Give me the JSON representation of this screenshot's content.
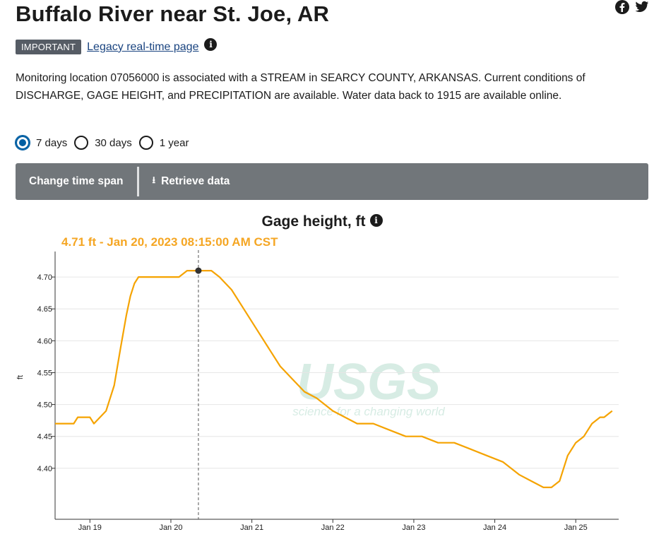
{
  "page": {
    "title": "Buffalo River near St. Joe, AR",
    "badge": "IMPORTANT",
    "legacy_link": "Legacy real-time page",
    "description": "Monitoring location 07056000 is associated with a STREAM in SEARCY COUNTY, ARKANSAS. Current conditions of DISCHARGE, GAGE HEIGHT, and PRECIPITATION are available. Water data back to 1915 are available online."
  },
  "social": {
    "facebook": "facebook-icon",
    "twitter": "twitter-icon"
  },
  "timespan": {
    "options": [
      "7 days",
      "30 days",
      "1 year"
    ],
    "selected": "7 days"
  },
  "toolbar": {
    "change_label": "Change time span",
    "retrieve_label": "Retrieve data"
  },
  "watermark": {
    "logo": "USGS",
    "tagline": "science for a changing world"
  },
  "chart_data": {
    "type": "line",
    "title": "Gage height, ft",
    "tooltip": "4.71 ft - Jan 20, 2023 08:15:00 AM CST",
    "ylabel": "ft",
    "xlabel": "",
    "ylim": [
      4.32,
      4.74
    ],
    "xlim": [
      18.57,
      25.53
    ],
    "yticks": [
      4.4,
      4.45,
      4.5,
      4.55,
      4.6,
      4.65,
      4.7
    ],
    "ytick_labels": [
      "4.40",
      "4.45",
      "4.50",
      "4.55",
      "4.60",
      "4.65",
      "4.70"
    ],
    "xticks": [
      19,
      20,
      21,
      22,
      23,
      24,
      25
    ],
    "xtick_labels": [
      "Jan 19",
      "Jan 20",
      "Jan 21",
      "Jan 22",
      "Jan 23",
      "Jan 24",
      "Jan 25"
    ],
    "cursor_x": 20.34,
    "cursor_y": 4.71,
    "color": "#f5a300",
    "series": [
      {
        "name": "Gage height",
        "x": [
          18.57,
          18.8,
          18.85,
          19.0,
          19.05,
          19.2,
          19.3,
          19.38,
          19.45,
          19.5,
          19.55,
          19.6,
          19.7,
          19.85,
          20.0,
          20.1,
          20.2,
          20.3,
          20.4,
          20.5,
          20.6,
          20.75,
          20.9,
          21.05,
          21.2,
          21.35,
          21.5,
          21.65,
          21.8,
          22.0,
          22.15,
          22.3,
          22.5,
          22.7,
          22.9,
          23.1,
          23.3,
          23.5,
          23.7,
          23.9,
          24.1,
          24.3,
          24.45,
          24.6,
          24.7,
          24.8,
          24.9,
          25.0,
          25.1,
          25.2,
          25.3,
          25.35,
          25.45
        ],
        "y": [
          4.47,
          4.47,
          4.48,
          4.48,
          4.47,
          4.49,
          4.53,
          4.59,
          4.64,
          4.67,
          4.69,
          4.7,
          4.7,
          4.7,
          4.7,
          4.7,
          4.71,
          4.71,
          4.71,
          4.71,
          4.7,
          4.68,
          4.65,
          4.62,
          4.59,
          4.56,
          4.54,
          4.52,
          4.51,
          4.49,
          4.48,
          4.47,
          4.47,
          4.46,
          4.45,
          4.45,
          4.44,
          4.44,
          4.43,
          4.42,
          4.41,
          4.39,
          4.38,
          4.37,
          4.37,
          4.38,
          4.42,
          4.44,
          4.45,
          4.47,
          4.48,
          4.48,
          4.49
        ]
      }
    ]
  }
}
